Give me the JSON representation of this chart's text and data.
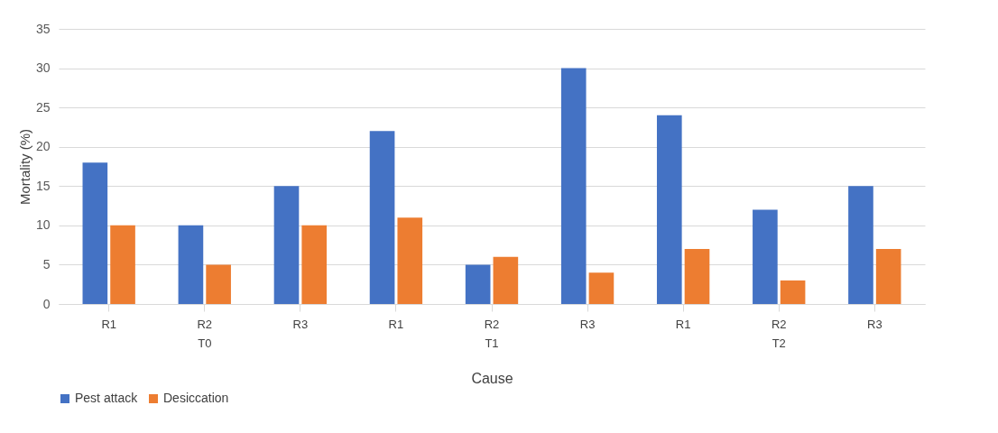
{
  "chart_data": {
    "type": "bar",
    "xlabel": "Cause",
    "ylabel": "Mortality (%)",
    "categories": [
      "R1",
      "R2",
      "R3",
      "R1",
      "R2",
      "R3",
      "R1",
      "R2",
      "R3"
    ],
    "annotations": [
      "T0",
      "T1",
      "T2"
    ],
    "series": [
      {
        "name": "Pest attack",
        "color": "#4472c4",
        "values": [
          18,
          10,
          15,
          22,
          5,
          30,
          24,
          12,
          15
        ]
      },
      {
        "name": "Desiccation",
        "color": "#ed7d31",
        "values": [
          10,
          5,
          10,
          11,
          6,
          4,
          7,
          3,
          7
        ]
      }
    ],
    "ylim": [
      0,
      35
    ],
    "yticks": [
      0,
      5,
      10,
      15,
      20,
      25,
      30,
      35
    ],
    "grid": "y",
    "legend": "bottom"
  }
}
